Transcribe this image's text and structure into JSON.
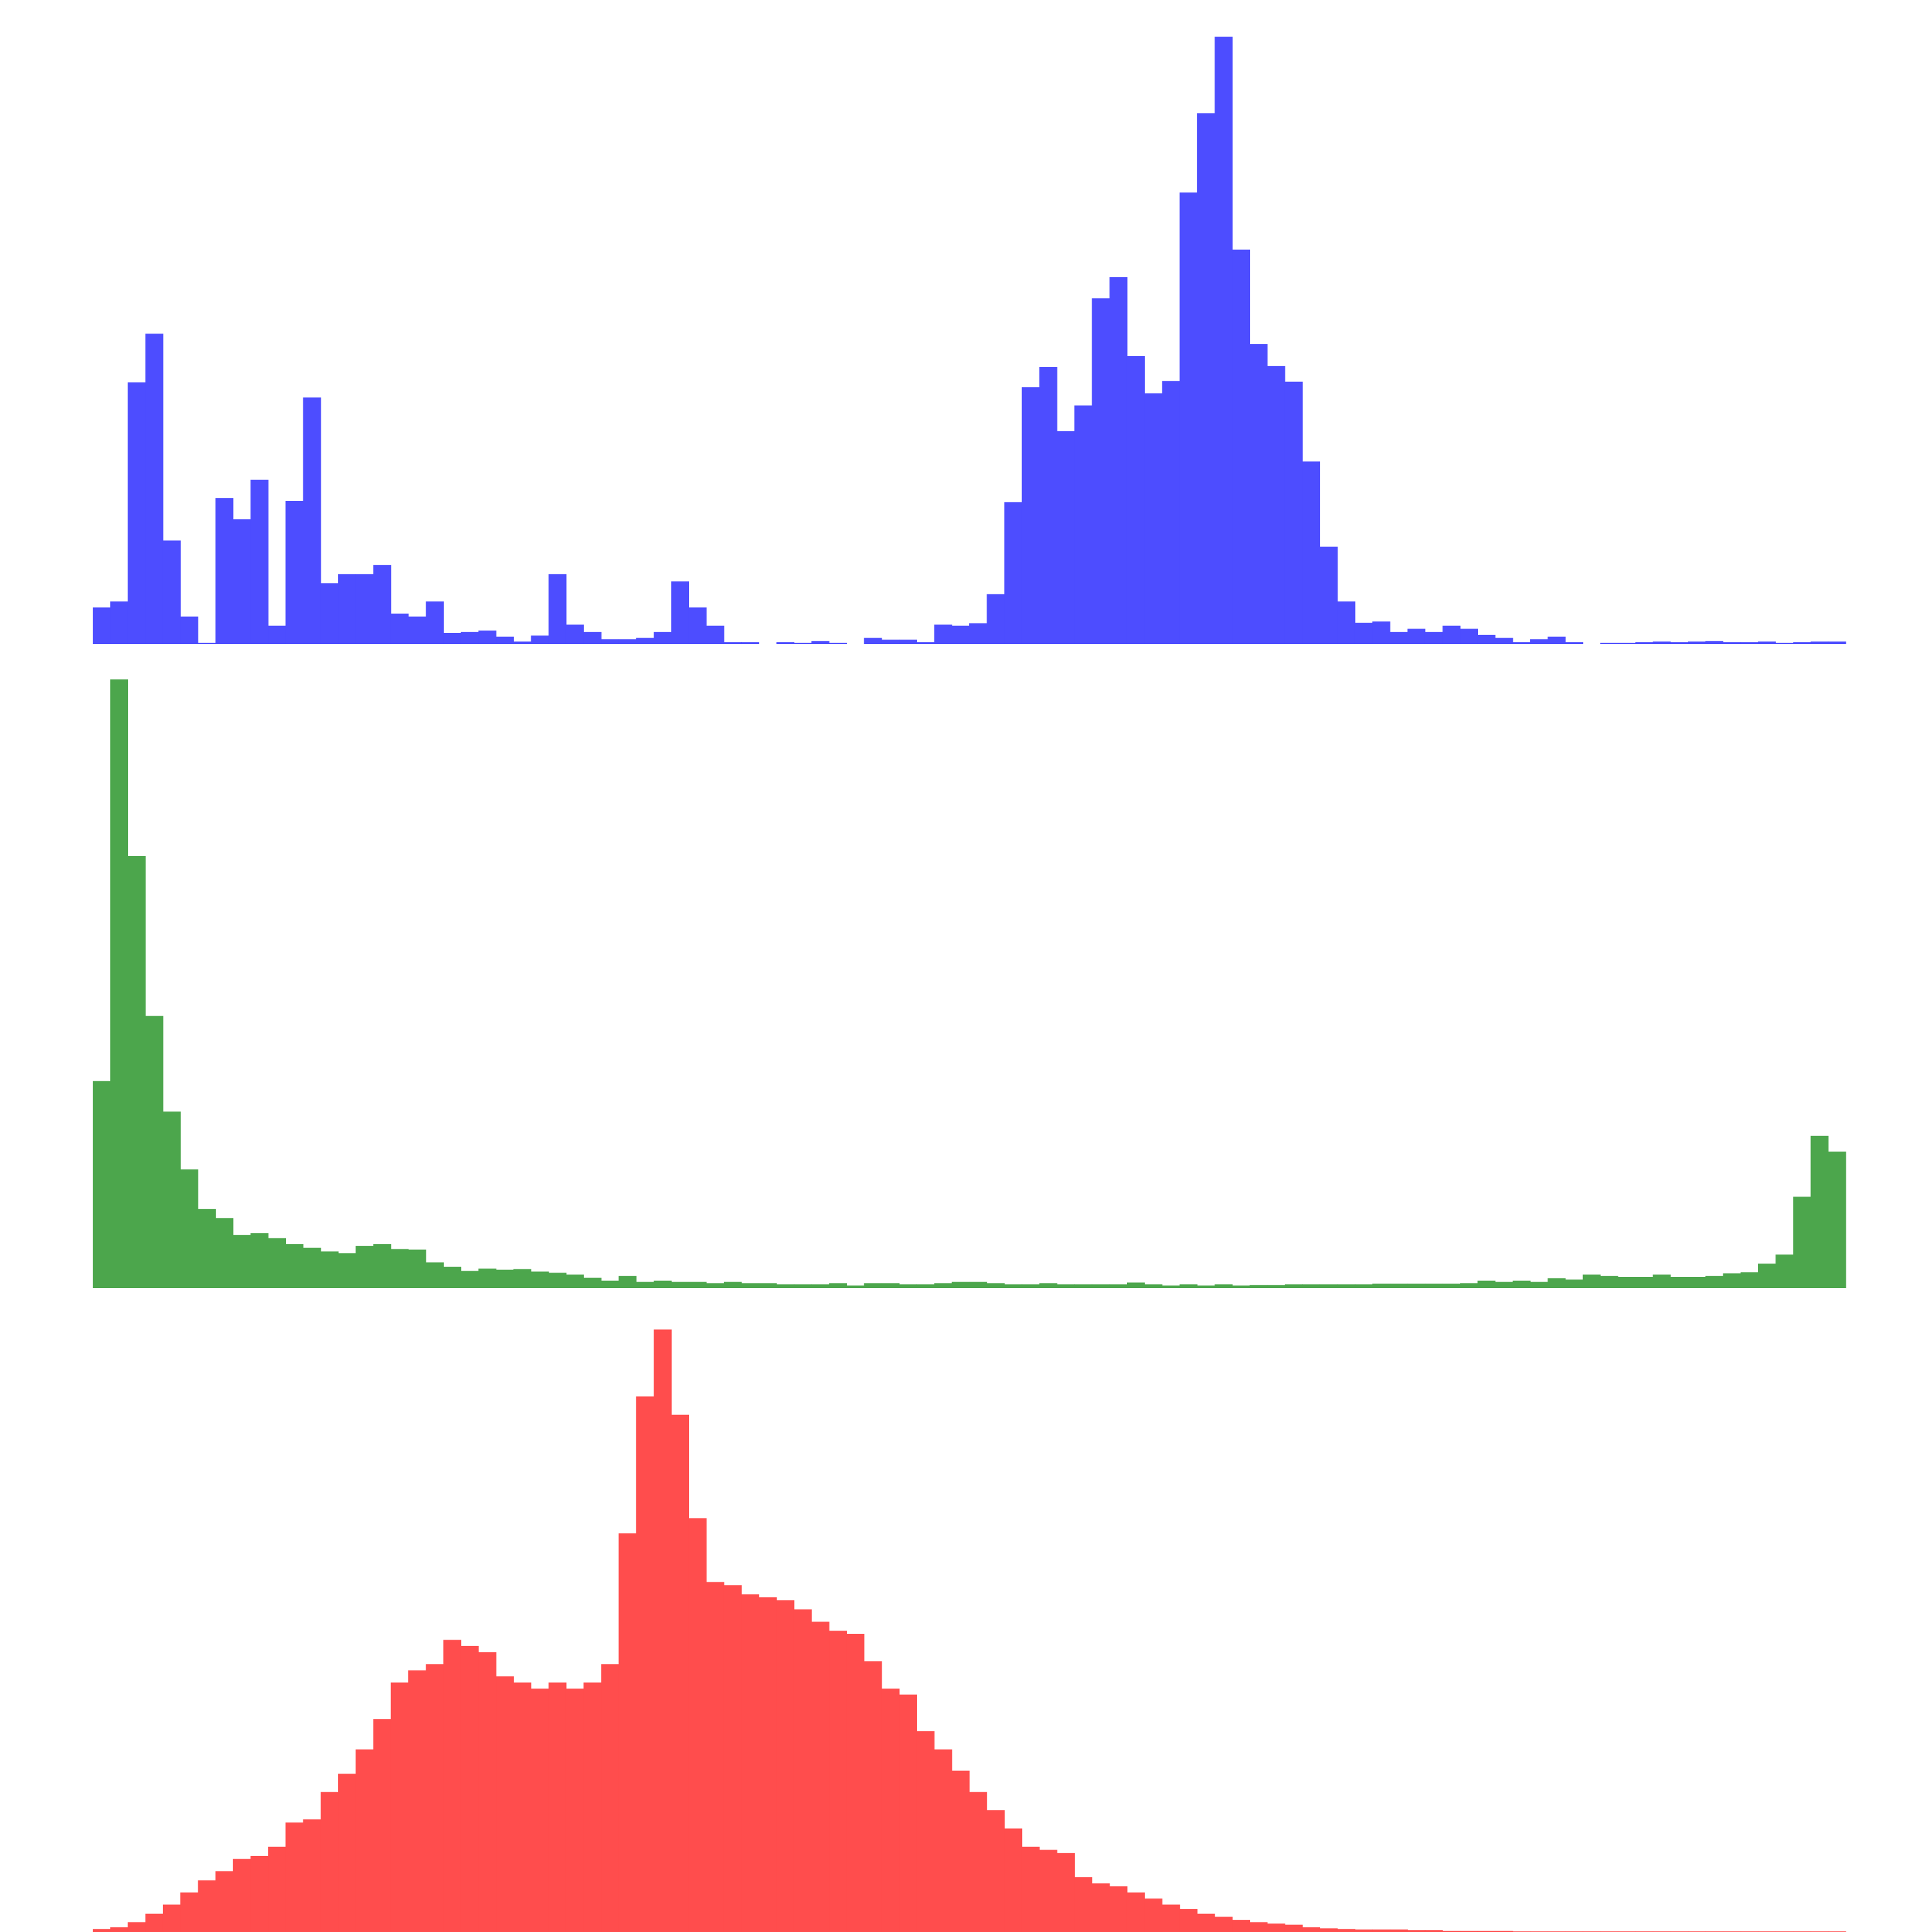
{
  "chart_data": [
    {
      "type": "bar",
      "name": "",
      "color": "#4d4dff",
      "bins": 100,
      "ylim": [
        0,
        1
      ],
      "values": [
        0.06,
        0.07,
        0.43,
        0.51,
        0.17,
        0.045,
        0.002,
        0.24,
        0.205,
        0.27,
        0.03,
        0.235,
        0.405,
        0.1,
        0.115,
        0.115,
        0.13,
        0.05,
        0.045,
        0.07,
        0.018,
        0.02,
        0.022,
        0.012,
        0.004,
        0.014,
        0.115,
        0.032,
        0.02,
        0.008,
        0.008,
        0.01,
        0.02,
        0.103,
        0.06,
        0.03,
        0.003,
        0.003,
        0,
        0.003,
        0.002,
        0.005,
        0.002,
        0,
        0.01,
        0.007,
        0.007,
        0.003,
        0.032,
        0.03,
        0.034,
        0.082,
        0.233,
        0.422,
        0.455,
        0.35,
        0.392,
        0.568,
        0.603,
        0.473,
        0.412,
        0.432,
        0.742,
        0.872,
        0.998,
        0.648,
        0.493,
        0.457,
        0.431,
        0.3,
        0.16,
        0.07,
        0.035,
        0.037,
        0.02,
        0.025,
        0.02,
        0.03,
        0.025,
        0.015,
        0.01,
        0.003,
        0.008,
        0.012,
        0.003,
        0,
        0.002,
        0.002,
        0.003,
        0.004,
        0.003,
        0.004,
        0.005,
        0.003,
        0.003,
        0.004,
        0.002,
        0.003,
        0.004,
        0.004
      ]
    },
    {
      "type": "bar",
      "name": "",
      "color": "#4ca64c",
      "bins": 100,
      "ylim": [
        0,
        1
      ],
      "values": [
        0.34,
        1.0,
        0.71,
        0.447,
        0.29,
        0.195,
        0.13,
        0.115,
        0.087,
        0.09,
        0.082,
        0.072,
        0.066,
        0.06,
        0.057,
        0.069,
        0.072,
        0.064,
        0.063,
        0.042,
        0.035,
        0.028,
        0.032,
        0.03,
        0.031,
        0.027,
        0.025,
        0.022,
        0.017,
        0.012,
        0.02,
        0.01,
        0.012,
        0.01,
        0.01,
        0.008,
        0.01,
        0.008,
        0.008,
        0.006,
        0.006,
        0.006,
        0.008,
        0.004,
        0.008,
        0.008,
        0.006,
        0.006,
        0.008,
        0.01,
        0.01,
        0.008,
        0.006,
        0.006,
        0.008,
        0.006,
        0.006,
        0.006,
        0.006,
        0.009,
        0.006,
        0.004,
        0.006,
        0.004,
        0.006,
        0.004,
        0.005,
        0.005,
        0.006,
        0.006,
        0.006,
        0.006,
        0.006,
        0.007,
        0.007,
        0.007,
        0.007,
        0.007,
        0.008,
        0.012,
        0.01,
        0.012,
        0.01,
        0.016,
        0.014,
        0.022,
        0.02,
        0.018,
        0.018,
        0.022,
        0.018,
        0.018,
        0.02,
        0.024,
        0.026,
        0.04,
        0.055,
        0.15,
        0.25,
        0.224
      ]
    },
    {
      "type": "bar",
      "name": "",
      "color": "#ff4d4d",
      "bins": 100,
      "ylim": [
        0,
        1
      ],
      "values": [
        0.005,
        0.008,
        0.016,
        0.03,
        0.045,
        0.065,
        0.085,
        0.1,
        0.12,
        0.125,
        0.14,
        0.18,
        0.185,
        0.23,
        0.26,
        0.3,
        0.35,
        0.41,
        0.43,
        0.44,
        0.48,
        0.47,
        0.46,
        0.42,
        0.41,
        0.4,
        0.41,
        0.4,
        0.41,
        0.44,
        0.655,
        0.88,
        0.99,
        0.85,
        0.68,
        0.575,
        0.57,
        0.555,
        0.55,
        0.545,
        0.53,
        0.51,
        0.495,
        0.49,
        0.445,
        0.4,
        0.39,
        0.33,
        0.3,
        0.265,
        0.23,
        0.2,
        0.17,
        0.14,
        0.135,
        0.13,
        0.09,
        0.08,
        0.075,
        0.065,
        0.055,
        0.045,
        0.038,
        0.03,
        0.025,
        0.02,
        0.016,
        0.014,
        0.012,
        0.008,
        0.006,
        0.005,
        0.004,
        0.004,
        0.004,
        0.003,
        0.003,
        0.002,
        0.002,
        0.002,
        0.002,
        0.001,
        0.001,
        0.001,
        0.001,
        0.001,
        0.001,
        0.001,
        0.001,
        0.001,
        0.001,
        0.001,
        0.001,
        0.001,
        0.001,
        0.001,
        0.001,
        0.001,
        0.001,
        0.001
      ]
    }
  ]
}
